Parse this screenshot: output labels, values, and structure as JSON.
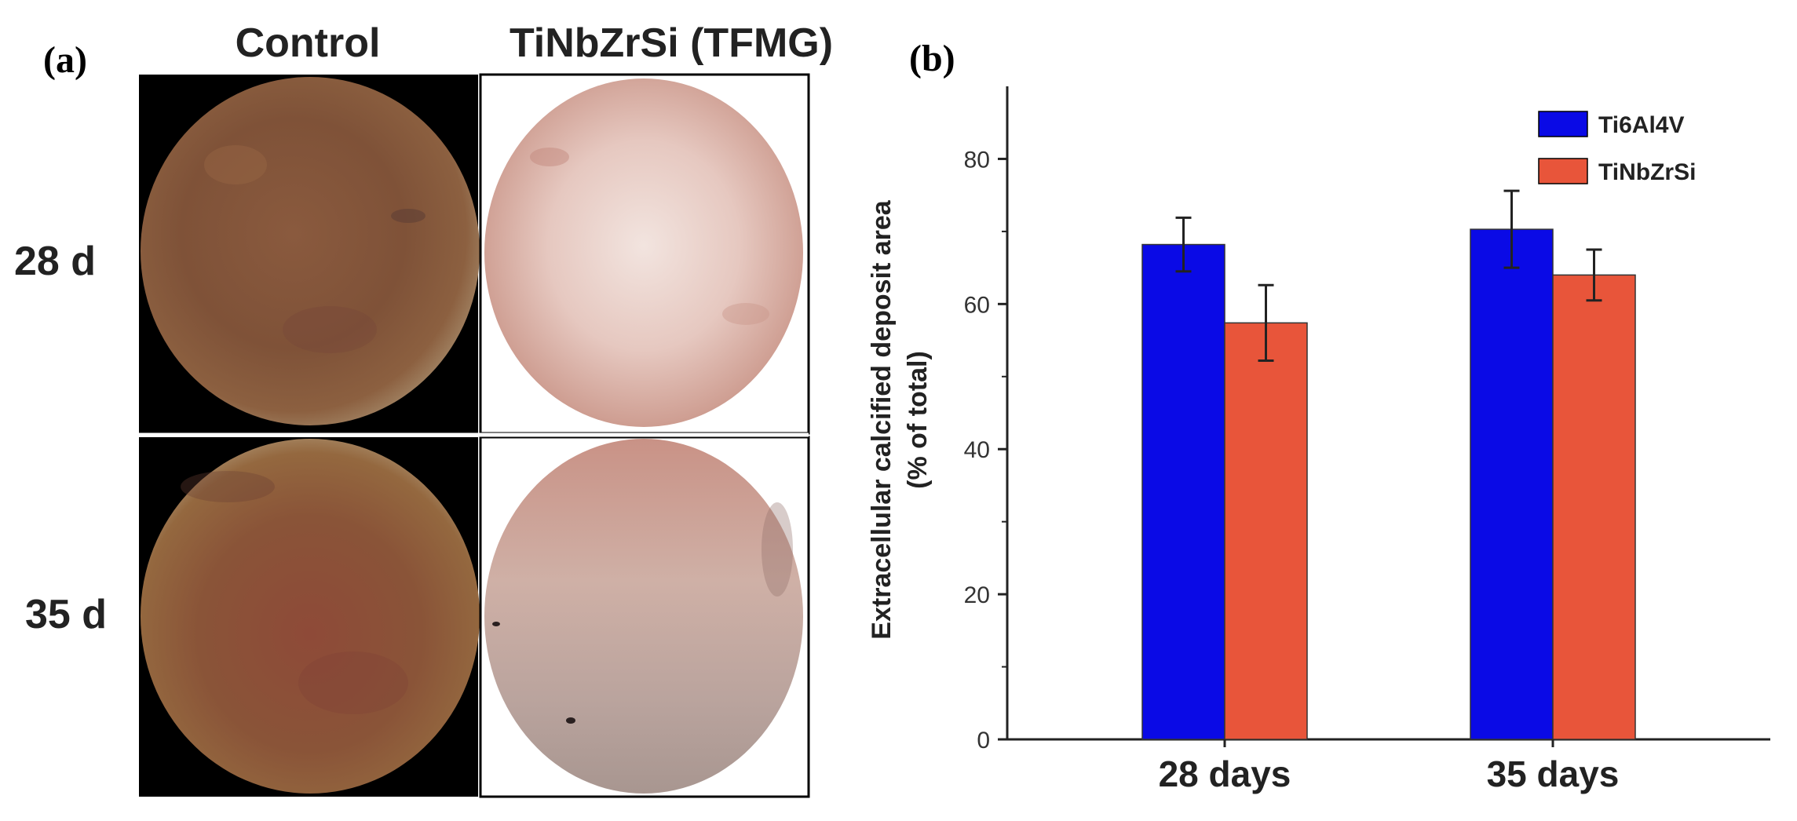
{
  "panel_a": {
    "label": "(a)",
    "col_headers": [
      "Control",
      "TiNbZrSi (TFMG)"
    ],
    "row_labels": [
      "28 d",
      "35 d"
    ]
  },
  "panel_b": {
    "label": "(b)"
  },
  "colors": {
    "ti6al4v": "#0a0ae6",
    "tinbzrsi": "#e8553a",
    "axis": "#222222"
  },
  "chart_data": {
    "type": "bar",
    "categories": [
      "28 days",
      "35 days"
    ],
    "series": [
      {
        "name": "Ti6Al4V",
        "values": [
          68.2,
          70.3
        ],
        "errors": [
          3.7,
          5.3
        ]
      },
      {
        "name": "TiNbZrSi",
        "values": [
          57.4,
          64.0
        ],
        "errors": [
          5.2,
          3.5
        ]
      }
    ],
    "ylabel_line1": "Extracellular calcified deposit area",
    "ylabel_line2": "(% of total)",
    "ylim": [
      0,
      90
    ],
    "yticks": [
      0,
      20,
      40,
      60,
      80
    ],
    "ytick_labels": [
      "0",
      "20",
      "40",
      "60",
      "80"
    ],
    "legend_position": "top-right"
  }
}
